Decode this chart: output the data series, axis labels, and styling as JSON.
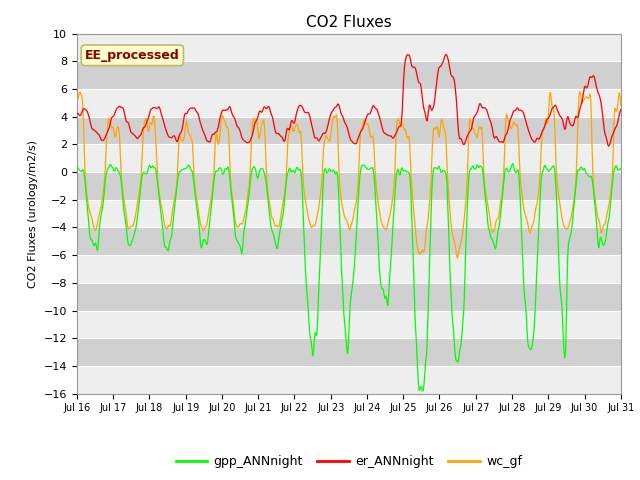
{
  "title": "CO2 Fluxes",
  "ylabel": "CO2 Fluxes (urology/m2/s)",
  "ylim": [
    -16,
    10
  ],
  "yticks": [
    -16,
    -14,
    -12,
    -10,
    -8,
    -6,
    -4,
    -2,
    0,
    2,
    4,
    6,
    8,
    10
  ],
  "xlabel_ticks": [
    "Jul 16",
    "Jul 17",
    "Jul 18",
    "Jul 19",
    "Jul 20",
    "Jul 21",
    "Jul 22",
    "Jul 23",
    "Jul 24",
    "Jul 25",
    "Jul 26",
    "Jul 27",
    "Jul 28",
    "Jul 29",
    "Jul 30",
    "Jul 31"
  ],
  "legend_labels": [
    "gpp_ANNnight",
    "er_ANNnight",
    "wc_gf"
  ],
  "line_colors": [
    "#00FF00",
    "#FF0000",
    "#FFA500"
  ],
  "annotation_text": "EE_processed",
  "annotation_color": "#8B0000",
  "annotation_bg": "#FFFFCC",
  "bg_color": "#FFFFFF",
  "plot_bg_color": "#D8D8D8",
  "band_color_light": "#EEEEEE",
  "band_color_dark": "#D0D0D0",
  "n_points": 720,
  "seed": 7
}
